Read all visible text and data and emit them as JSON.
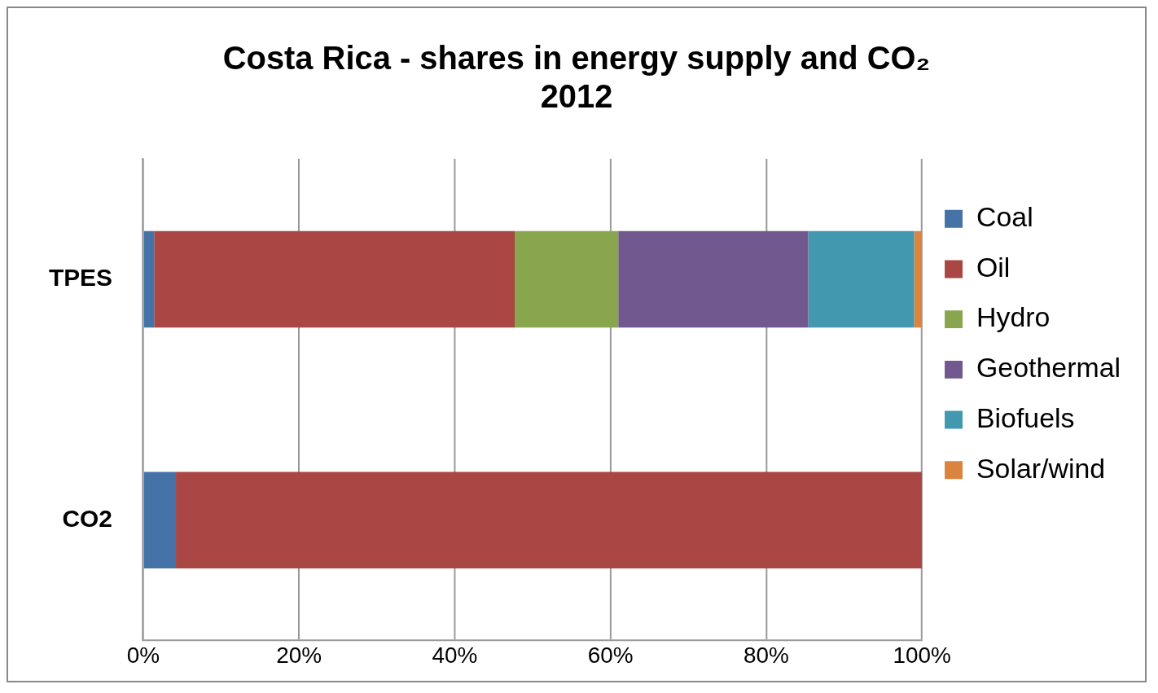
{
  "chart_data": {
    "type": "bar",
    "orientation": "horizontal",
    "stacked": true,
    "title": "Costa Rica - shares in energy supply and CO₂\n2012",
    "categories": [
      "TPES",
      "CO2"
    ],
    "series": [
      {
        "name": "Coal",
        "color": "#4572a7",
        "values": [
          1.4,
          4.2
        ]
      },
      {
        "name": "Oil",
        "color": "#aa4643",
        "values": [
          46.3,
          95.8
        ]
      },
      {
        "name": "Hydro",
        "color": "#89a54e",
        "values": [
          13.3,
          0
        ]
      },
      {
        "name": "Geothermal",
        "color": "#71588f",
        "values": [
          24.4,
          0
        ]
      },
      {
        "name": "Biofuels",
        "color": "#4198af",
        "values": [
          13.6,
          0
        ]
      },
      {
        "name": "Solar/wind",
        "color": "#db843d",
        "values": [
          1.0,
          0
        ]
      }
    ],
    "xlim": [
      0,
      100
    ],
    "xticks": [
      {
        "value": 0,
        "label": "0%"
      },
      {
        "value": 20,
        "label": "20%"
      },
      {
        "value": 40,
        "label": "40%"
      },
      {
        "value": 60,
        "label": "60%"
      },
      {
        "value": 80,
        "label": "80%"
      },
      {
        "value": 100,
        "label": "100%"
      }
    ],
    "grid": "x",
    "legend": "right"
  }
}
